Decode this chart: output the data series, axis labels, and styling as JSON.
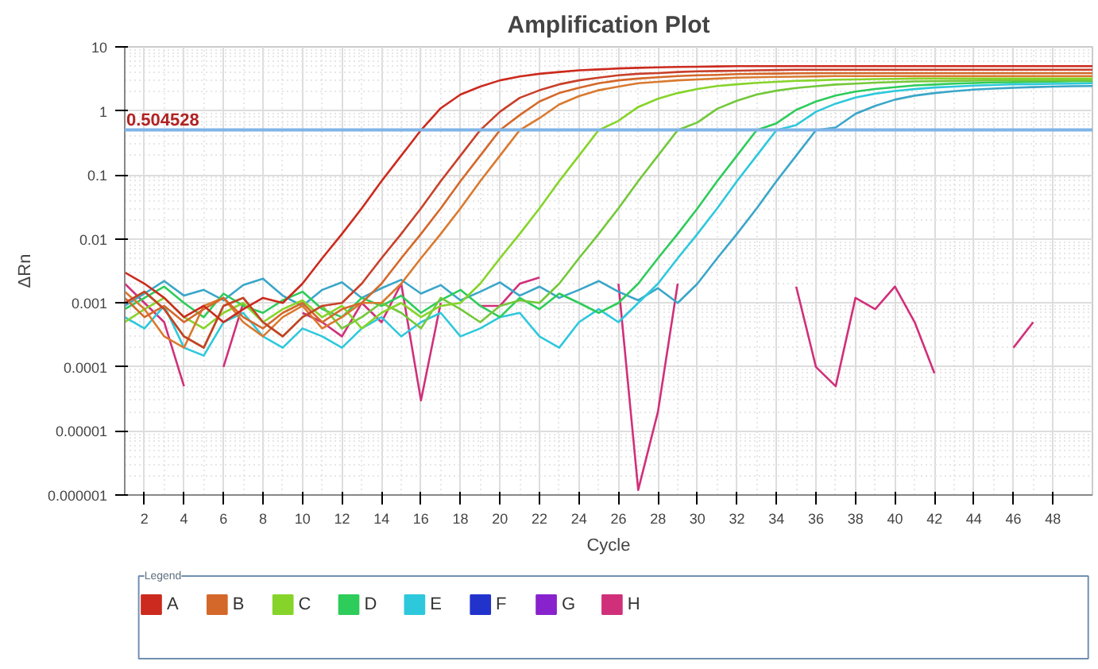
{
  "chart_data": {
    "type": "line",
    "title": "Amplification Plot",
    "xlabel": "Cycle",
    "ylabel": "ΔRn",
    "legend_title": "Legend",
    "legend": "bottom",
    "grid": true,
    "log": "y",
    "x": [
      1,
      2,
      3,
      4,
      5,
      6,
      7,
      8,
      9,
      10,
      11,
      12,
      13,
      14,
      15,
      16,
      17,
      18,
      19,
      20,
      21,
      22,
      23,
      24,
      25,
      26,
      27,
      28,
      29,
      30,
      31,
      32,
      33,
      34,
      35,
      36,
      37,
      38,
      39,
      40,
      41,
      42,
      43,
      44,
      45,
      46,
      47,
      48,
      49,
      50
    ],
    "xlim": [
      1,
      50
    ],
    "xticks": [
      2,
      4,
      6,
      8,
      10,
      12,
      14,
      16,
      18,
      20,
      22,
      24,
      26,
      28,
      30,
      32,
      34,
      36,
      38,
      40,
      42,
      44,
      46,
      48
    ],
    "ylim": [
      1e-06,
      10
    ],
    "yticks": [
      {
        "value": 1e-06,
        "label": "0.000001"
      },
      {
        "value": 1e-05,
        "label": "0.00001"
      },
      0.0001,
      0.001,
      0.01,
      0.1,
      1,
      10
    ],
    "ref_lines": [
      {
        "axis": "y",
        "value": 0.504528,
        "label": "0.504528",
        "color": "#7fb4e6"
      }
    ],
    "series": [
      {
        "name": "A",
        "color": "#cc2a1e",
        "values": [
          0.003,
          0.002,
          0.0012,
          0.0006,
          0.0009,
          0.0005,
          0.0008,
          0.0012,
          0.001,
          0.002,
          0.005,
          0.012,
          0.03,
          0.08,
          0.2,
          0.5,
          1.1,
          1.8,
          2.4,
          3.0,
          3.45,
          3.8,
          4.05,
          4.3,
          4.45,
          4.6,
          4.7,
          4.8,
          4.85,
          4.9,
          4.95,
          5.0,
          5.0,
          5.0,
          5.0,
          5.0,
          5.0,
          5.0,
          5.0,
          5.0,
          5.0,
          5.0,
          5.0,
          5.0,
          5.0,
          5.0,
          5.0,
          5.0,
          5.0,
          5.0
        ]
      },
      {
        "color": "#c8402a",
        "values": [
          0.001,
          0.0015,
          0.0008,
          0.0003,
          0.0002,
          0.0009,
          0.0012,
          0.0005,
          0.0003,
          0.0006,
          0.0009,
          0.001,
          0.002,
          0.005,
          0.012,
          0.03,
          0.08,
          0.2,
          0.5,
          0.97,
          1.6,
          2.1,
          2.6,
          3.0,
          3.3,
          3.6,
          3.8,
          3.9,
          4.05,
          4.15,
          4.2,
          4.25,
          4.3,
          4.35,
          4.4,
          4.4,
          4.4,
          4.4,
          4.4,
          4.4,
          4.4,
          4.4,
          4.4,
          4.4,
          4.4,
          4.4,
          4.4,
          4.4,
          4.4,
          4.4
        ]
      },
      {
        "name": "B",
        "color": "#d4682a",
        "values": [
          0.0012,
          0.0006,
          0.0009,
          0.0005,
          0.0008,
          0.0012,
          0.0006,
          0.0004,
          0.0007,
          0.001,
          0.0005,
          0.0008,
          0.001,
          0.002,
          0.005,
          0.012,
          0.03,
          0.08,
          0.2,
          0.5,
          0.86,
          1.4,
          1.9,
          2.3,
          2.7,
          3.0,
          3.2,
          3.35,
          3.5,
          3.6,
          3.65,
          3.75,
          3.8,
          3.82,
          3.86,
          3.9,
          3.9,
          3.9,
          3.9,
          3.9,
          3.9,
          3.9,
          3.9,
          3.9,
          3.9,
          3.9,
          3.9,
          3.9,
          3.9,
          3.9
        ]
      },
      {
        "color": "#d97a30",
        "values": [
          0.0015,
          0.0008,
          0.0003,
          0.0002,
          0.0009,
          0.0012,
          0.0005,
          0.0003,
          0.0006,
          0.0009,
          0.0004,
          0.0006,
          0.001,
          0.001,
          0.002,
          0.005,
          0.012,
          0.03,
          0.08,
          0.2,
          0.5,
          0.77,
          1.26,
          1.7,
          2.1,
          2.4,
          2.7,
          2.85,
          3.0,
          3.1,
          3.2,
          3.3,
          3.35,
          3.4,
          3.43,
          3.46,
          3.5,
          3.5,
          3.5,
          3.5,
          3.5,
          3.5,
          3.5,
          3.5,
          3.5,
          3.5,
          3.5,
          3.5,
          3.5,
          3.5
        ]
      },
      {
        "name": "C",
        "color": "#86d42a",
        "values": [
          0.0005,
          0.0008,
          0.0012,
          0.0006,
          0.0004,
          0.0007,
          0.001,
          0.0005,
          0.0008,
          0.0011,
          0.0006,
          0.0009,
          0.0004,
          0.0007,
          0.001,
          0.0006,
          0.0009,
          0.001,
          0.002,
          0.005,
          0.012,
          0.03,
          0.08,
          0.2,
          0.5,
          0.7,
          1.15,
          1.55,
          1.9,
          2.2,
          2.45,
          2.6,
          2.75,
          2.85,
          2.95,
          3.0,
          3.07,
          3.1,
          3.14,
          3.17,
          3.2,
          3.2,
          3.2,
          3.2,
          3.2,
          3.2,
          3.2,
          3.2,
          3.2,
          3.2
        ]
      },
      {
        "color": "#74c83a",
        "values": [
          0.001,
          0.0015,
          0.0008,
          0.0003,
          0.0002,
          0.0009,
          0.0012,
          0.0005,
          0.0003,
          0.0006,
          0.0009,
          0.0004,
          0.0006,
          0.001,
          0.0007,
          0.0004,
          0.0012,
          0.0008,
          0.0005,
          0.0009,
          0.0011,
          0.001,
          0.002,
          0.005,
          0.012,
          0.03,
          0.08,
          0.2,
          0.5,
          0.66,
          1.08,
          1.44,
          1.8,
          2.07,
          2.28,
          2.43,
          2.58,
          2.67,
          2.76,
          2.82,
          2.88,
          2.91,
          2.94,
          2.97,
          3.0,
          3.0,
          3.0,
          3.0,
          3.0,
          3.0
        ]
      },
      {
        "name": "D",
        "color": "#2ecc5a",
        "values": [
          0.0008,
          0.0012,
          0.0018,
          0.001,
          0.0006,
          0.0014,
          0.0009,
          0.0007,
          0.0011,
          0.0015,
          0.0008,
          0.0006,
          0.0012,
          0.0009,
          0.0013,
          0.0007,
          0.0011,
          0.0016,
          0.0009,
          0.0006,
          0.0012,
          0.0008,
          0.0014,
          0.001,
          0.0007,
          0.001,
          0.002,
          0.005,
          0.012,
          0.03,
          0.08,
          0.2,
          0.5,
          0.64,
          1.04,
          1.4,
          1.74,
          2.0,
          2.2,
          2.35,
          2.5,
          2.58,
          2.67,
          2.73,
          2.78,
          2.81,
          2.84,
          2.87,
          2.9,
          2.9
        ]
      },
      {
        "name": "E",
        "color": "#2ec8dc",
        "values": [
          0.0006,
          0.0004,
          0.0009,
          0.0002,
          0.00015,
          0.0005,
          0.0007,
          0.0003,
          0.0002,
          0.0004,
          0.0003,
          0.0002,
          0.0004,
          0.0006,
          0.0003,
          0.0005,
          0.0007,
          0.0003,
          0.0004,
          0.0006,
          0.0007,
          0.0003,
          0.0002,
          0.0005,
          0.0008,
          0.0005,
          0.001,
          0.002,
          0.005,
          0.012,
          0.03,
          0.08,
          0.2,
          0.5,
          0.6,
          0.97,
          1.3,
          1.62,
          1.86,
          2.05,
          2.19,
          2.32,
          2.4,
          2.48,
          2.54,
          2.6,
          2.62,
          2.65,
          2.67,
          2.7
        ]
      },
      {
        "color": "#3aa6c8",
        "values": [
          0.0009,
          0.0014,
          0.0022,
          0.0013,
          0.0016,
          0.0011,
          0.0019,
          0.0024,
          0.0013,
          0.0009,
          0.0016,
          0.0021,
          0.0012,
          0.0017,
          0.0023,
          0.0014,
          0.0019,
          0.0011,
          0.0015,
          0.0021,
          0.0013,
          0.0018,
          0.0012,
          0.0016,
          0.0022,
          0.0015,
          0.0011,
          0.0017,
          0.001,
          0.002,
          0.005,
          0.012,
          0.03,
          0.08,
          0.2,
          0.5,
          0.55,
          0.9,
          1.2,
          1.5,
          1.73,
          1.9,
          2.03,
          2.15,
          2.23,
          2.3,
          2.35,
          2.4,
          2.43,
          2.45
        ]
      },
      {
        "name": "F",
        "color": "#2233cc",
        "values": [
          null,
          null,
          null,
          null,
          null,
          null,
          null,
          null,
          null,
          null,
          null,
          null,
          null,
          null,
          null,
          null,
          null,
          null,
          null,
          null,
          null,
          null,
          null,
          null,
          null,
          null,
          null,
          null,
          null,
          null,
          null,
          null,
          null,
          null,
          null,
          null,
          null,
          null,
          null,
          null,
          null,
          null,
          null,
          null,
          null,
          null,
          null,
          null,
          null,
          null
        ]
      },
      {
        "name": "G",
        "color": "#8822cc",
        "values": [
          null,
          null,
          null,
          null,
          null,
          null,
          null,
          null,
          null,
          null,
          null,
          null,
          null,
          null,
          null,
          null,
          null,
          null,
          null,
          null,
          null,
          null,
          null,
          null,
          null,
          null,
          null,
          null,
          null,
          null,
          null,
          null,
          null,
          null,
          null,
          null,
          null,
          null,
          null,
          null,
          null,
          null,
          null,
          null,
          null,
          null,
          null,
          null,
          null,
          null
        ]
      },
      {
        "name": "H",
        "color": "#d0307a",
        "values": [
          0.002,
          0.001,
          0.0005,
          5e-05,
          null,
          0.0001,
          0.001,
          null,
          null,
          0.0007,
          0.0005,
          0.0003,
          0.001,
          0.0005,
          0.002,
          3e-05,
          0.001,
          null,
          0.0009,
          0.0009,
          0.002,
          0.0025,
          null,
          null,
          null,
          0.002,
          1.2e-06,
          2e-05,
          0.002,
          null,
          null,
          null,
          null,
          null,
          0.0018,
          0.0001,
          5e-05,
          0.0012,
          0.0008,
          0.0018,
          0.0005,
          8e-05,
          null,
          null,
          null,
          0.0002,
          0.0005,
          null,
          null,
          null
        ]
      }
    ]
  }
}
